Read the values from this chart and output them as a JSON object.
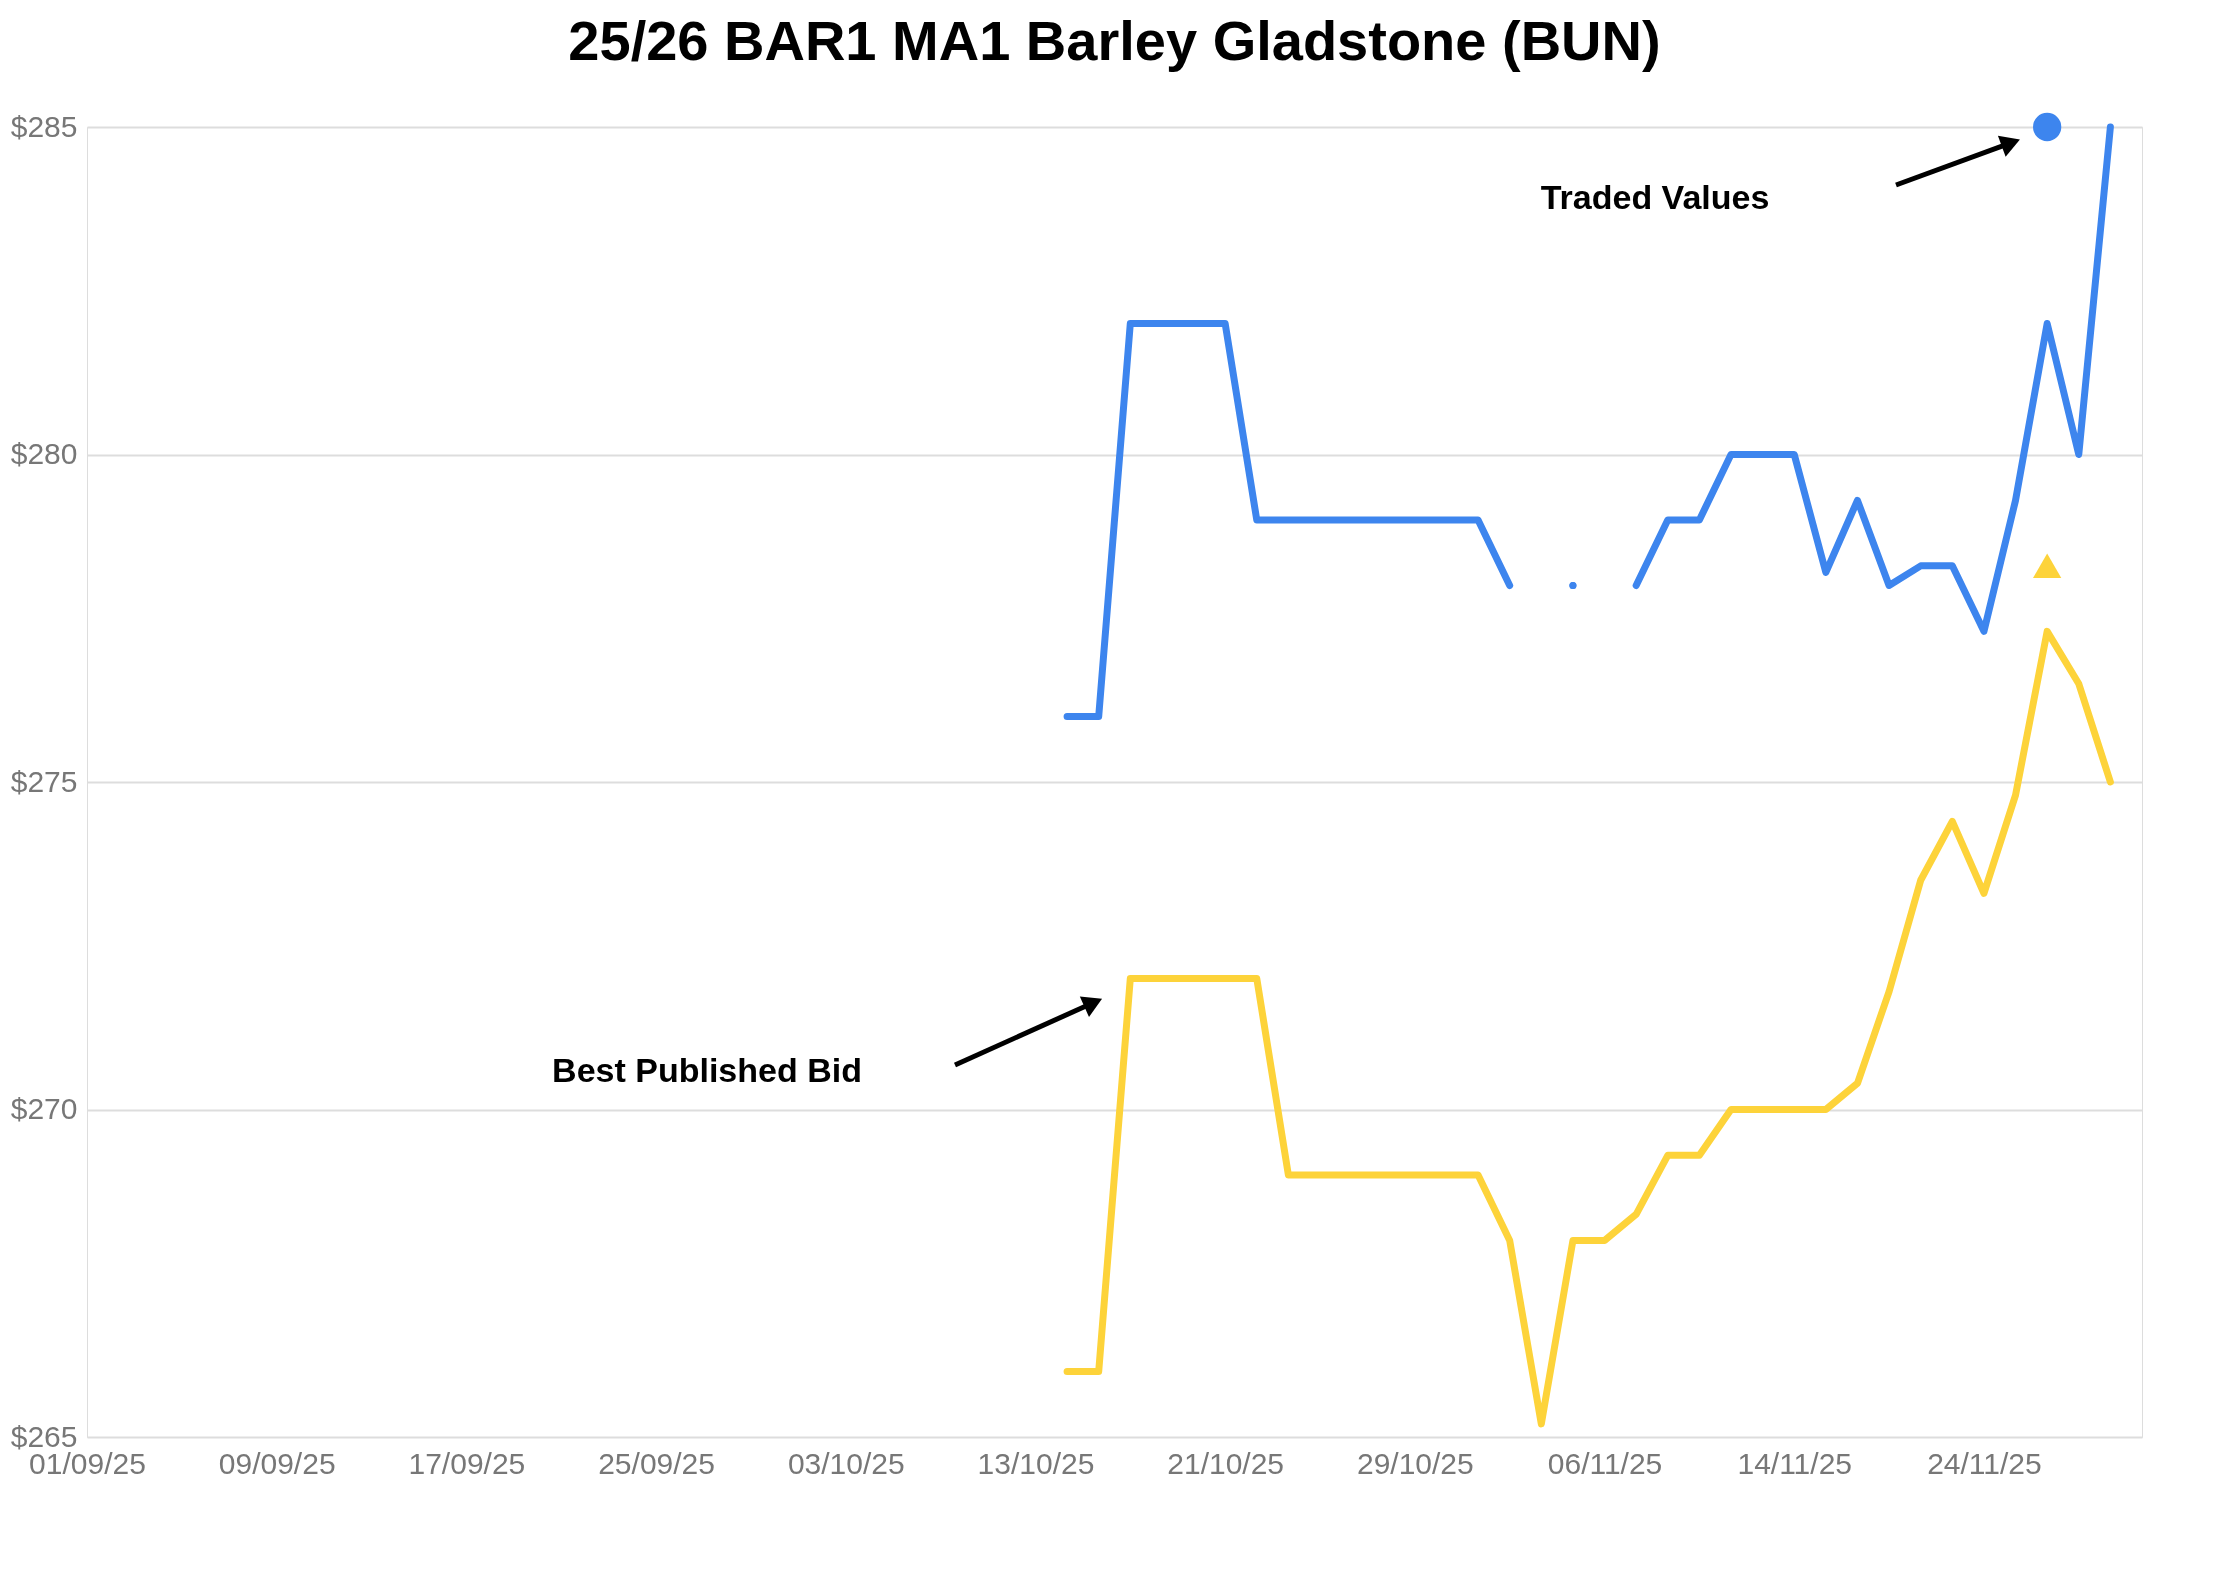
{
  "chart_data": {
    "type": "line",
    "title": "25/26 BAR1 MA1 Barley Gladstone (BUN)",
    "categories": [
      "01/09/25",
      null,
      null,
      null,
      null,
      null,
      "09/09/25",
      null,
      null,
      null,
      null,
      null,
      "17/09/25",
      null,
      null,
      null,
      null,
      null,
      "25/09/25",
      null,
      null,
      null,
      null,
      null,
      "03/10/25",
      null,
      null,
      null,
      null,
      null,
      "13/10/25",
      null,
      null,
      null,
      null,
      null,
      "21/10/25",
      null,
      null,
      null,
      null,
      null,
      "29/10/25",
      null,
      null,
      null,
      null,
      null,
      "06/11/25",
      null,
      null,
      null,
      null,
      null,
      "14/11/25",
      null,
      null,
      null,
      null,
      null,
      "24/11/25",
      null,
      null,
      null,
      null
    ],
    "series": [
      {
        "color": "#3d85ee",
        "values": [
          null,
          null,
          null,
          null,
          null,
          null,
          null,
          null,
          null,
          null,
          null,
          null,
          null,
          null,
          null,
          null,
          null,
          null,
          null,
          null,
          null,
          null,
          null,
          null,
          null,
          null,
          null,
          null,
          null,
          null,
          null,
          276,
          276,
          282,
          282,
          282,
          282,
          279,
          279,
          279,
          279,
          279,
          279,
          279,
          279,
          278,
          null,
          278,
          null,
          278,
          279,
          279,
          280,
          280,
          280,
          278.2,
          279.3,
          278,
          278.3,
          278.3,
          277.3,
          279.3,
          282,
          280,
          285
        ]
      },
      {
        "color": "#fdd33a",
        "values": [
          null,
          null,
          null,
          null,
          null,
          null,
          null,
          null,
          null,
          null,
          null,
          null,
          null,
          null,
          null,
          null,
          null,
          null,
          null,
          null,
          null,
          null,
          null,
          null,
          null,
          null,
          null,
          null,
          null,
          null,
          null,
          266,
          266,
          272,
          272,
          272,
          272,
          272,
          269,
          269,
          269,
          269,
          269,
          269,
          269,
          268,
          265.2,
          268,
          268,
          268.4,
          269.3,
          269.3,
          270,
          270,
          270,
          270,
          270.4,
          271.8,
          273.5,
          274.4,
          273.3,
          274.8,
          277.3,
          276.5,
          275
        ]
      },
      {
        "type": "scatter",
        "marker": "circle",
        "color": "#3d85ee",
        "values": [
          null,
          null,
          null,
          null,
          null,
          null,
          null,
          null,
          null,
          null,
          null,
          null,
          null,
          null,
          null,
          null,
          null,
          null,
          null,
          null,
          null,
          null,
          null,
          null,
          null,
          null,
          null,
          null,
          null,
          null,
          null,
          null,
          null,
          null,
          null,
          null,
          null,
          null,
          null,
          null,
          null,
          null,
          null,
          null,
          null,
          null,
          null,
          null,
          null,
          null,
          null,
          null,
          null,
          null,
          null,
          null,
          null,
          null,
          null,
          null,
          null,
          null,
          285,
          null,
          null
        ]
      },
      {
        "type": "scatter",
        "marker": "triangle",
        "color": "#fdd33a",
        "values": [
          null,
          null,
          null,
          null,
          null,
          null,
          null,
          null,
          null,
          null,
          null,
          null,
          null,
          null,
          null,
          null,
          null,
          null,
          null,
          null,
          null,
          null,
          null,
          null,
          null,
          null,
          null,
          null,
          null,
          null,
          null,
          null,
          null,
          null,
          null,
          null,
          null,
          null,
          null,
          null,
          null,
          null,
          null,
          null,
          null,
          null,
          null,
          null,
          null,
          null,
          null,
          null,
          null,
          null,
          null,
          null,
          null,
          null,
          null,
          null,
          null,
          null,
          278.3,
          null,
          null
        ]
      }
    ],
    "ylim": [
      265,
      285
    ],
    "yticks": [
      {
        "value": 265,
        "label": "$265"
      },
      {
        "value": 270,
        "label": "$270"
      },
      {
        "value": 275,
        "label": "$275"
      },
      {
        "value": 280,
        "label": "$280"
      },
      {
        "value": 285,
        "label": "$285"
      }
    ],
    "grid": "y",
    "annotations": [
      "Best Published Bid",
      "Traded Values"
    ]
  }
}
